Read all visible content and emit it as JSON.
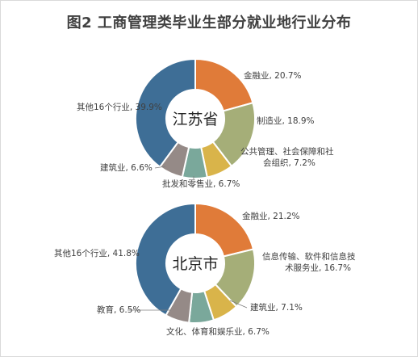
{
  "title": "图2 工商管理类毕业生部分就业地行业分布",
  "chart_data": [
    {
      "type": "pie",
      "center_label": "江苏省",
      "slices": [
        {
          "label": "金融业",
          "value": 20.7,
          "text": "金融业, 20.7%",
          "color": "#e07b39"
        },
        {
          "label": "制造业",
          "value": 18.9,
          "text": "制造业, 18.9%",
          "color": "#a5ae78"
        },
        {
          "label": "公共管理、社会保障和社会组织",
          "value": 7.2,
          "text": [
            "公共管理、社会保障和社",
            "会组织, 7.2%"
          ],
          "color": "#d9b44a"
        },
        {
          "label": "批发和零售业",
          "value": 6.7,
          "text": "批发和零售业, 6.7%",
          "color": "#7aa89b"
        },
        {
          "label": "建筑业",
          "value": 6.6,
          "text": "建筑业, 6.6%",
          "color": "#958a87"
        },
        {
          "label": "其他16个行业",
          "value": 39.9,
          "text": "其他16个行业, 39.9%",
          "color": "#3e6e96"
        }
      ]
    },
    {
      "type": "pie",
      "center_label": "北京市",
      "slices": [
        {
          "label": "金融业",
          "value": 21.2,
          "text": "金融业, 21.2%",
          "color": "#e07b39"
        },
        {
          "label": "信息传输、软件和信息技术服务业",
          "value": 16.7,
          "text": [
            "信息传输、软件和信息技",
            "术服务业, 16.7%"
          ],
          "color": "#a5ae78"
        },
        {
          "label": "建筑业",
          "value": 7.1,
          "text": "建筑业, 7.1%",
          "color": "#d9b44a"
        },
        {
          "label": "文化、体育和娱乐业",
          "value": 6.7,
          "text": "文化、体育和娱乐业, 6.7%",
          "color": "#7aa89b"
        },
        {
          "label": "教育",
          "value": 6.5,
          "text": "教育, 6.5%",
          "color": "#958a87"
        },
        {
          "label": "其他16个行业",
          "value": 41.8,
          "text": "其他16个行业, 41.8%",
          "color": "#3e6e96"
        }
      ]
    }
  ]
}
